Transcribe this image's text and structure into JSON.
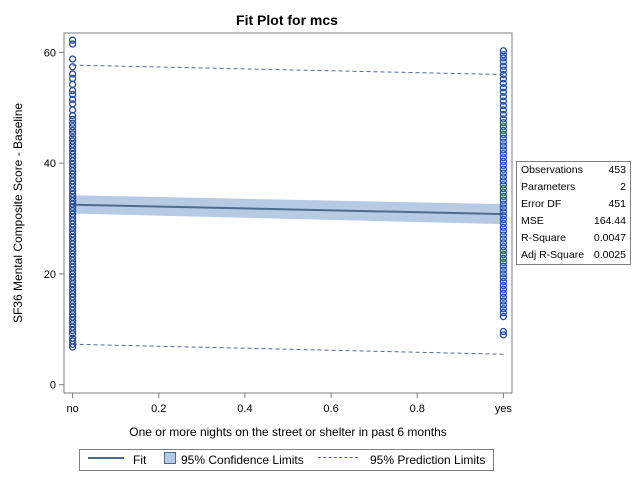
{
  "chart_data": {
    "type": "scatter",
    "title": "Fit Plot for mcs",
    "xlabel": "One or more nights on the street or shelter in past 6 months",
    "ylabel": "SF36 Mental Composite Score - Baseline",
    "xlim": [
      -0.02,
      1.02
    ],
    "ylim": [
      -1.5,
      63.5
    ],
    "x_ticks": [
      {
        "value": 0,
        "label": "no"
      },
      {
        "value": 0.2,
        "label": "0.2"
      },
      {
        "value": 0.4,
        "label": "0.4"
      },
      {
        "value": 0.6,
        "label": "0.6"
      },
      {
        "value": 0.8,
        "label": "0.8"
      },
      {
        "value": 1,
        "label": "yes"
      }
    ],
    "y_ticks": [
      0,
      20,
      40,
      60
    ],
    "fit": {
      "x": [
        0,
        1
      ],
      "y": [
        32.5,
        30.8
      ]
    },
    "confidence_band": {
      "x": [
        0,
        1
      ],
      "lower": [
        30.9,
        29.0
      ],
      "upper": [
        34.2,
        32.6
      ]
    },
    "prediction_limits": {
      "x": [
        0,
        1
      ],
      "lower": [
        7.3,
        5.5
      ],
      "upper": [
        57.7,
        56.0
      ]
    },
    "series": [
      {
        "x_value": 0,
        "points": [
          62.2,
          61.5,
          58.8,
          57.4,
          56.1,
          55.3,
          54.2,
          53.1,
          52.4,
          51.5,
          50.7,
          49.6,
          48.6,
          47.9,
          47.2,
          46.6,
          45.9,
          45.3,
          44.6,
          44.0,
          43.4,
          42.8,
          42.2,
          41.6,
          41.0,
          40.4,
          39.8,
          39.2,
          38.6,
          38.0,
          37.4,
          36.8,
          36.2,
          35.6,
          35.0,
          34.4,
          33.8,
          33.2,
          32.6,
          32.0,
          31.4,
          30.8,
          30.2,
          29.6,
          29.0,
          28.4,
          27.8,
          27.2,
          26.6,
          26.0,
          25.4,
          24.8,
          24.2,
          23.6,
          23.0,
          22.4,
          21.8,
          21.2,
          20.6,
          20.0,
          19.4,
          18.8,
          18.2,
          17.6,
          17.0,
          16.4,
          15.8,
          15.2,
          14.6,
          14.0,
          13.4,
          12.8,
          12.2,
          11.6,
          11.0,
          10.4,
          9.8,
          9.2,
          8.4,
          7.9,
          7.3,
          6.8
        ]
      },
      {
        "x_value": 1,
        "points": [
          60.3,
          59.6,
          59.0,
          58.3,
          57.5,
          56.8,
          56.0,
          55.2,
          54.4,
          53.6,
          52.8,
          52.0,
          51.2,
          50.4,
          49.6,
          48.8,
          48.0,
          47.3,
          46.6,
          45.9,
          45.2,
          44.5,
          43.8,
          43.1,
          42.4,
          41.7,
          41.0,
          40.3,
          39.6,
          38.9,
          38.2,
          37.5,
          36.8,
          36.1,
          35.4,
          34.7,
          34.0,
          33.3,
          32.6,
          31.9,
          31.2,
          30.5,
          29.8,
          29.1,
          28.4,
          27.7,
          27.0,
          26.3,
          25.6,
          24.9,
          24.2,
          23.5,
          22.8,
          22.1,
          21.4,
          20.7,
          20.0,
          19.3,
          18.6,
          17.9,
          17.2,
          16.5,
          15.8,
          15.1,
          14.4,
          13.7,
          13.0,
          12.3,
          9.6,
          9.0
        ]
      }
    ],
    "legend": {
      "placement": "bottom",
      "entries": [
        "Fit",
        "95% Confidence Limits",
        "95% Prediction Limits"
      ]
    },
    "colors": {
      "marker": "#1f4aa6",
      "fit_line": "#4f6a8c",
      "band": "#b6c9e5",
      "prediction": "#5466a8"
    },
    "stats": [
      {
        "label": "Observations",
        "value": "453"
      },
      {
        "label": "Parameters",
        "value": "2"
      },
      {
        "label": "Error DF",
        "value": "451"
      },
      {
        "label": "MSE",
        "value": "164.44"
      },
      {
        "label": "R-Square",
        "value": "0.0047"
      },
      {
        "label": "Adj R-Square",
        "value": "0.0025"
      }
    ],
    "grid": false
  }
}
